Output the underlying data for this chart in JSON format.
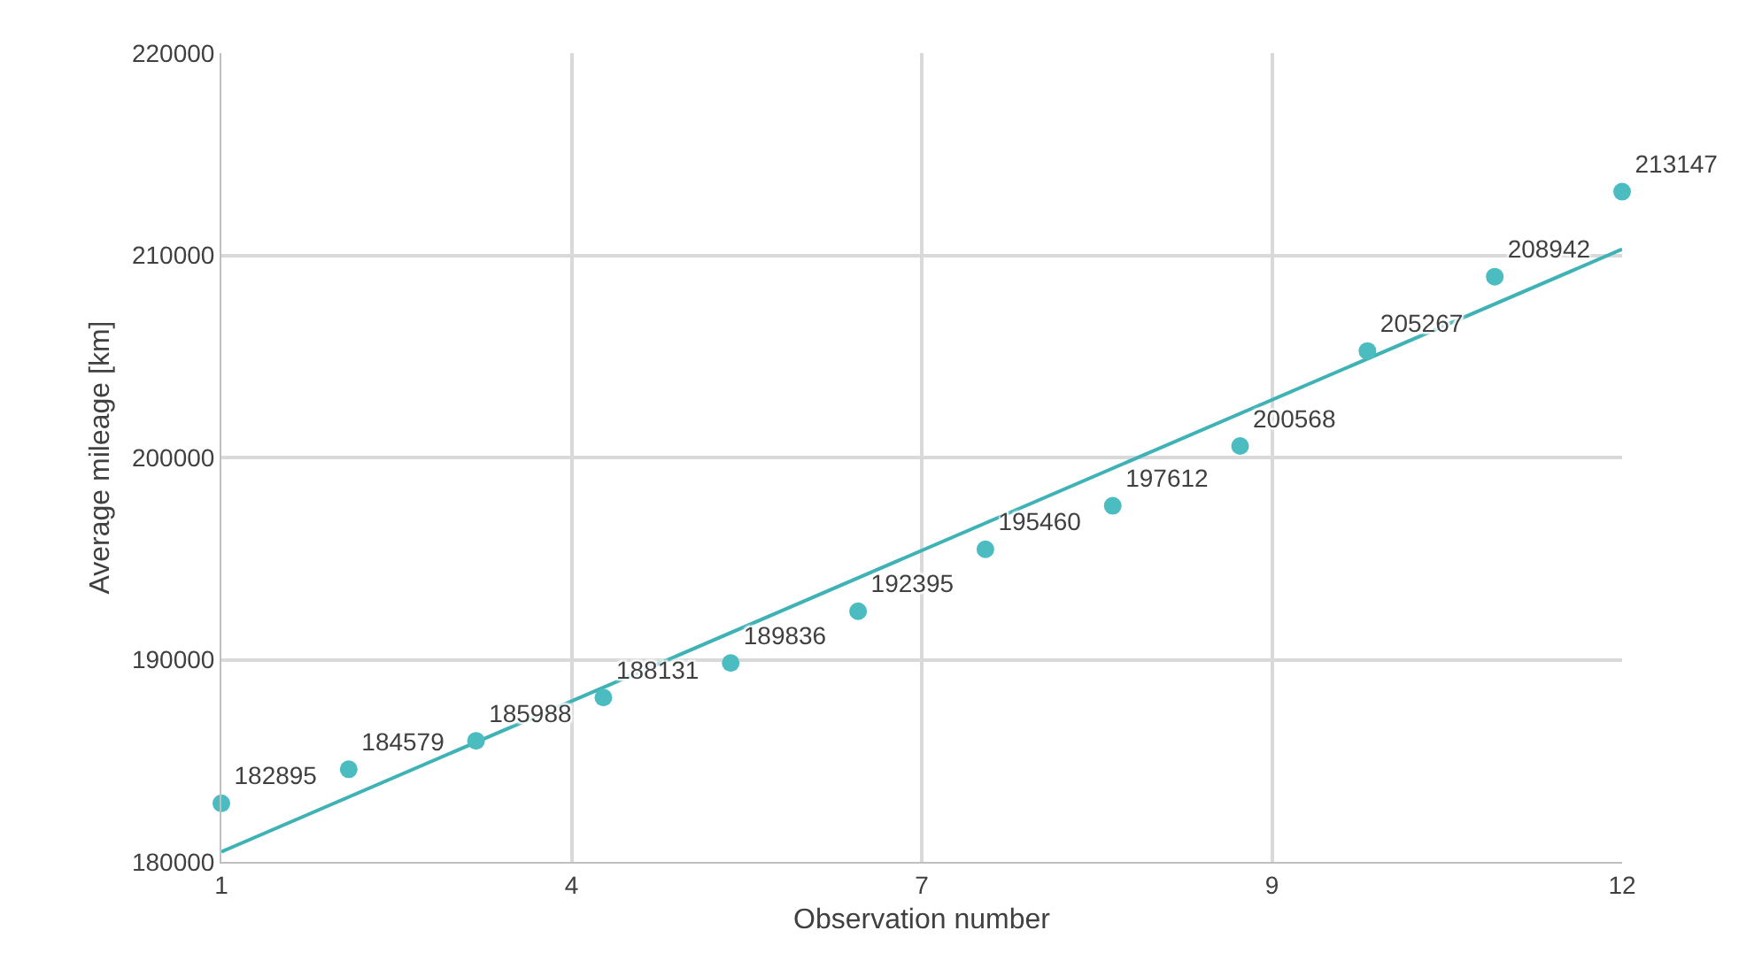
{
  "chart_data": {
    "type": "scatter",
    "xlabel": "Observation number",
    "ylabel": "Average mileage [km]",
    "x": [
      1,
      2,
      3,
      4,
      5,
      6,
      7,
      8,
      9,
      10,
      11,
      12
    ],
    "series": [
      {
        "color": "#4bbcbf",
        "marker": "circle",
        "data_labels": true,
        "values": [
          182895,
          184579,
          185988,
          188131,
          189836,
          192395,
          195460,
          197612,
          200568,
          205267,
          208942,
          213147
        ]
      },
      {
        "type": "line",
        "color": "#3fb2b6",
        "line_style": "solid",
        "x": [
          1,
          12
        ],
        "values": [
          180500,
          210300
        ]
      }
    ],
    "xlim": [
      1,
      12
    ],
    "xticks": [
      1,
      {
        "value": 3.75,
        "label": "4"
      },
      {
        "value": 6.5,
        "label": "7"
      },
      {
        "value": 9.25,
        "label": "9"
      },
      12
    ],
    "ylim": [
      180000,
      220000
    ],
    "yticks": [
      180000,
      190000,
      200000,
      210000,
      220000
    ],
    "grid": true
  }
}
